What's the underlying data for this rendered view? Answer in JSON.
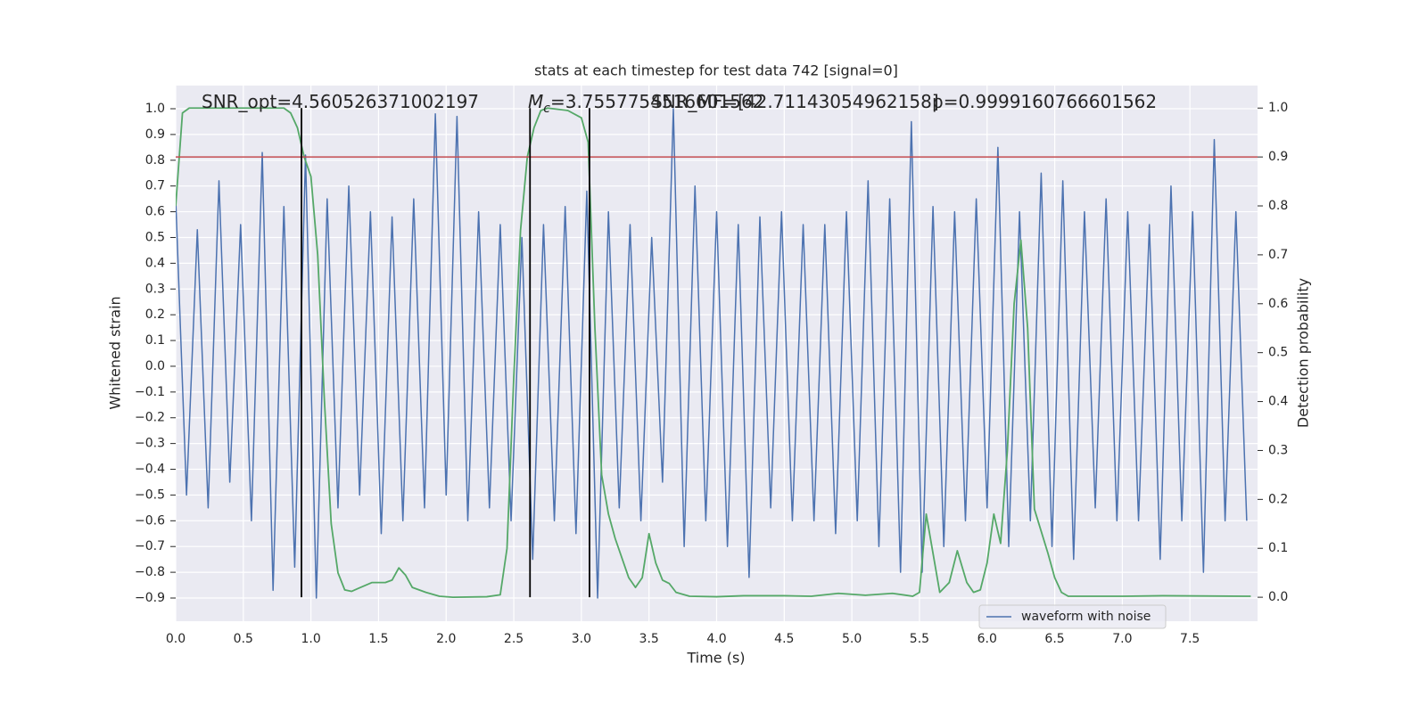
{
  "chart_data": {
    "type": "line",
    "title": "stats at each timestep for test data 742 [signal=0]",
    "xlabel": "Time (s)",
    "ylabel": "Whitened strain",
    "y2label": "Detection probability",
    "annotations": [
      "SNR_opt=4.560526371002197",
      {
        "symbol": "M",
        "subscript": "c",
        "text": "=3.7557754516601562"
      },
      "SNR_MF=[42.71143054962158]",
      "p=0.9999160766601562"
    ],
    "xlim": [
      0,
      8
    ],
    "ylim": [
      -0.99,
      1.09
    ],
    "y2lim": [
      -0.049,
      1.046
    ],
    "xticks": [
      {
        "value": 0,
        "label": "0.0"
      },
      0.5,
      {
        "value": 1,
        "label": "1.0"
      },
      1.5,
      {
        "value": 2,
        "label": "2.0"
      },
      2.5,
      {
        "value": 3,
        "label": "3.0"
      },
      3.5,
      {
        "value": 4,
        "label": "4.0"
      },
      4.5,
      {
        "value": 5,
        "label": "5.0"
      },
      5.5,
      {
        "value": 6,
        "label": "6.0"
      },
      6.5,
      {
        "value": 7,
        "label": "7.0"
      },
      7.5
    ],
    "yticks": [
      {
        "value": -0.9,
        "label": "−0.9"
      },
      {
        "value": -0.8,
        "label": "−0.8"
      },
      {
        "value": -0.7,
        "label": "−0.7"
      },
      {
        "value": -0.6,
        "label": "−0.6"
      },
      {
        "value": -0.5,
        "label": "−0.5"
      },
      {
        "value": -0.4,
        "label": "−0.4"
      },
      {
        "value": -0.3,
        "label": "−0.3"
      },
      {
        "value": -0.2,
        "label": "−0.2"
      },
      {
        "value": -0.1,
        "label": "−0.1"
      },
      {
        "value": 0,
        "label": "0.0"
      },
      0.1,
      0.2,
      0.3,
      0.4,
      0.5,
      0.6,
      0.7,
      0.8,
      0.9,
      {
        "value": 1,
        "label": "1.0"
      }
    ],
    "y2ticks": [
      {
        "value": 0,
        "label": "0.0"
      },
      0.1,
      0.2,
      0.3,
      0.4,
      0.5,
      0.6,
      0.7,
      0.8,
      0.9,
      {
        "value": 1,
        "label": "1.0"
      }
    ],
    "grid": true,
    "legend": "lower right",
    "series": [
      {
        "name": "waveform with noise",
        "color": "#4c72b0",
        "in_legend": true,
        "x": [
          0,
          0.08,
          0.16,
          0.24,
          0.32,
          0.4,
          0.48,
          0.56,
          0.64,
          0.72,
          0.8,
          0.88,
          0.96,
          1.04,
          1.12,
          1.2,
          1.28,
          1.36,
          1.44,
          1.52,
          1.6,
          1.68,
          1.76,
          1.84,
          1.92,
          2,
          2.08,
          2.16,
          2.24,
          2.32,
          2.4,
          2.48,
          2.56,
          2.64,
          2.72,
          2.8,
          2.88,
          2.96,
          3.04,
          3.12,
          3.2,
          3.28,
          3.36,
          3.44,
          3.52,
          3.6,
          3.68,
          3.76,
          3.84,
          3.92,
          4,
          4.08,
          4.16,
          4.24,
          4.32,
          4.4,
          4.48,
          4.56,
          4.64,
          4.72,
          4.8,
          4.88,
          4.96,
          5.04,
          5.12,
          5.2,
          5.28,
          5.36,
          5.44,
          5.52,
          5.6,
          5.68,
          5.76,
          5.84,
          5.92,
          6,
          6.08,
          6.16,
          6.24,
          6.32,
          6.4,
          6.48,
          6.56,
          6.64,
          6.72,
          6.8,
          6.88,
          6.96,
          7.04,
          7.12,
          7.2,
          7.28,
          7.36,
          7.44,
          7.52,
          7.6,
          7.68,
          7.76,
          7.84,
          7.92
        ],
        "values": [
          0.65,
          -0.5,
          0.53,
          -0.55,
          0.72,
          -0.45,
          0.55,
          -0.6,
          0.83,
          -0.87,
          0.62,
          -0.78,
          0.82,
          -0.9,
          0.65,
          -0.55,
          0.7,
          -0.5,
          0.6,
          -0.65,
          0.58,
          -0.6,
          0.65,
          -0.55,
          0.98,
          -0.5,
          0.97,
          -0.6,
          0.6,
          -0.55,
          0.55,
          -0.6,
          0.5,
          -0.75,
          0.55,
          -0.6,
          0.62,
          -0.65,
          0.68,
          -0.9,
          0.6,
          -0.55,
          0.55,
          -0.6,
          0.5,
          -0.45,
          1.0,
          -0.7,
          0.7,
          -0.6,
          0.6,
          -0.7,
          0.55,
          -0.82,
          0.58,
          -0.55,
          0.6,
          -0.6,
          0.55,
          -0.6,
          0.55,
          -0.65,
          0.6,
          -0.6,
          0.72,
          -0.7,
          0.65,
          -0.8,
          0.95,
          -0.8,
          0.62,
          -0.7,
          0.6,
          -0.6,
          0.65,
          -0.55,
          0.85,
          -0.7,
          0.6,
          -0.6,
          0.75,
          -0.7,
          0.72,
          -0.75,
          0.6,
          -0.55,
          0.65,
          -0.6,
          0.6,
          -0.6,
          0.55,
          -0.75,
          0.7,
          -0.6,
          0.6,
          -0.8,
          0.88,
          -0.6,
          0.6,
          -0.6
        ]
      },
      {
        "color": "#55a868",
        "axis": "y2",
        "in_legend": false,
        "x": [
          0,
          0.05,
          0.1,
          0.8,
          0.85,
          0.9,
          0.95,
          1,
          1.05,
          1.1,
          1.15,
          1.2,
          1.25,
          1.3,
          1.35,
          1.45,
          1.55,
          1.6,
          1.65,
          1.7,
          1.75,
          1.85,
          1.95,
          2.05,
          2.3,
          2.4,
          2.45,
          2.5,
          2.55,
          2.6,
          2.65,
          2.7,
          2.75,
          2.9,
          3,
          3.05,
          3.1,
          3.15,
          3.2,
          3.25,
          3.35,
          3.4,
          3.45,
          3.5,
          3.55,
          3.6,
          3.65,
          3.7,
          3.8,
          4,
          4.2,
          4.5,
          4.7,
          4.9,
          5.1,
          5.3,
          5.45,
          5.5,
          5.55,
          5.6,
          5.65,
          5.72,
          5.78,
          5.85,
          5.9,
          5.95,
          6,
          6.05,
          6.1,
          6.15,
          6.2,
          6.25,
          6.3,
          6.35,
          6.45,
          6.5,
          6.55,
          6.6,
          7,
          7.3,
          7.95
        ],
        "values": [
          0.8,
          0.99,
          1.0,
          1.0,
          0.99,
          0.96,
          0.9,
          0.86,
          0.7,
          0.4,
          0.15,
          0.05,
          0.015,
          0.012,
          0.018,
          0.03,
          0.03,
          0.035,
          0.06,
          0.045,
          0.02,
          0.01,
          0.002,
          0,
          0.001,
          0.005,
          0.1,
          0.45,
          0.75,
          0.9,
          0.96,
          0.995,
          1.0,
          0.995,
          0.98,
          0.93,
          0.55,
          0.25,
          0.17,
          0.12,
          0.04,
          0.02,
          0.04,
          0.13,
          0.07,
          0.035,
          0.028,
          0.01,
          0.002,
          0.001,
          0.003,
          0.003,
          0.002,
          0.008,
          0.004,
          0.008,
          0.002,
          0.01,
          0.17,
          0.09,
          0.01,
          0.03,
          0.095,
          0.03,
          0.01,
          0.015,
          0.07,
          0.17,
          0.11,
          0.3,
          0.6,
          0.73,
          0.55,
          0.18,
          0.09,
          0.04,
          0.01,
          0.002,
          0.002,
          0.003,
          0.002
        ]
      }
    ],
    "hlines": [
      {
        "y": 0.9,
        "axis": "y2",
        "color": "#c44e52"
      }
    ],
    "vlines": [
      {
        "x": 0.93,
        "ymin": 0,
        "ymax": 1,
        "axis": "y2",
        "color": "#000000"
      },
      {
        "x": 2.62,
        "ymin": 0,
        "ymax": 1,
        "axis": "y2",
        "color": "#000000"
      },
      {
        "x": 3.06,
        "ymin": 0,
        "ymax": 1,
        "axis": "y2",
        "color": "#000000"
      }
    ]
  }
}
